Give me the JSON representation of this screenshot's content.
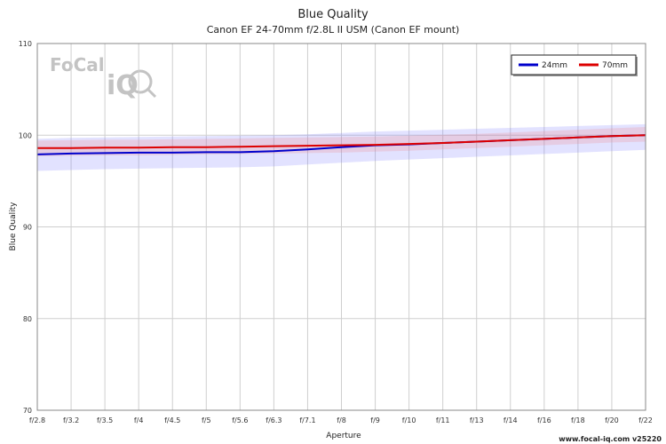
{
  "chart_data": {
    "type": "line",
    "title": "Blue Quality",
    "subtitle": "Canon EF 24-70mm f/2.8L II USM (Canon EF mount)",
    "xlabel": "Aperture",
    "ylabel": "Blue Quality",
    "categories": [
      "f/2.8",
      "f/3.2",
      "f/3.5",
      "f/4",
      "f/4.5",
      "f/5",
      "f/5.6",
      "f/6.3",
      "f/7.1",
      "f/8",
      "f/9",
      "f/10",
      "f/11",
      "f/13",
      "f/14",
      "f/16",
      "f/18",
      "f/20",
      "f/22"
    ],
    "ylim": [
      70,
      110
    ],
    "yticks": [
      70,
      80,
      90,
      100,
      110
    ],
    "grid": true,
    "legend_position": "top-right",
    "series": [
      {
        "name": "24mm",
        "color": "#0000cc",
        "band_color": "#7a7aff",
        "values": [
          97.9,
          98.0,
          98.05,
          98.1,
          98.1,
          98.15,
          98.15,
          98.25,
          98.45,
          98.7,
          98.9,
          99.0,
          99.15,
          99.3,
          99.45,
          99.6,
          99.75,
          99.9,
          100.0
        ],
        "band_low": [
          96.1,
          96.2,
          96.3,
          96.35,
          96.4,
          96.45,
          96.5,
          96.6,
          96.8,
          97.0,
          97.2,
          97.35,
          97.5,
          97.65,
          97.8,
          97.95,
          98.1,
          98.25,
          98.4
        ],
        "band_high": [
          99.6,
          99.7,
          99.75,
          99.8,
          99.85,
          99.9,
          99.95,
          100.0,
          100.1,
          100.25,
          100.4,
          100.5,
          100.6,
          100.7,
          100.8,
          100.9,
          101.0,
          101.1,
          101.2
        ]
      },
      {
        "name": "70mm",
        "color": "#dd0000",
        "band_color": "#f08080",
        "values": [
          98.6,
          98.6,
          98.65,
          98.65,
          98.7,
          98.7,
          98.75,
          98.8,
          98.85,
          98.9,
          98.95,
          99.05,
          99.15,
          99.3,
          99.45,
          99.6,
          99.75,
          99.9,
          100.0
        ],
        "band_low": [
          97.7,
          97.75,
          97.8,
          97.8,
          97.85,
          97.9,
          97.95,
          98.0,
          98.05,
          98.1,
          98.2,
          98.3,
          98.45,
          98.6,
          98.75,
          98.9,
          99.05,
          99.2,
          99.3
        ],
        "band_high": [
          99.4,
          99.45,
          99.5,
          99.5,
          99.55,
          99.6,
          99.65,
          99.7,
          99.75,
          99.8,
          99.85,
          99.95,
          100.05,
          100.15,
          100.3,
          100.45,
          100.6,
          100.75,
          100.9
        ]
      }
    ]
  },
  "watermark": {
    "brand_line1": "FoCal",
    "brand_line2": "iQ"
  },
  "footer": {
    "text": "www.focal-iq.com  v25220"
  }
}
